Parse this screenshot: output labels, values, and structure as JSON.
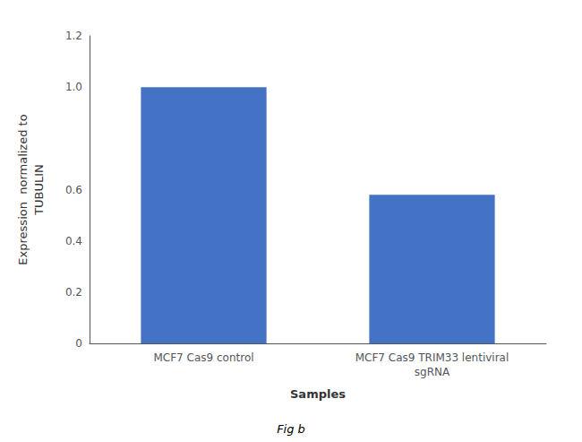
{
  "chart_data": {
    "type": "bar",
    "categories": [
      "MCF7 Cas9 control",
      "MCF7 Cas9 TRIM33 lentiviral\nsgRNA"
    ],
    "values": [
      1.0,
      0.58
    ],
    "color": "#4472C4",
    "xlabel": "Samples",
    "ylabel": "Expression  normalized to\nTUBULIN",
    "ylim": [
      0,
      1.2
    ],
    "yticks": [
      0,
      0.2,
      0.4,
      0.6,
      {
        "value": 1,
        "label": "1.0"
      },
      1.2
    ],
    "grid": false,
    "annotations": [
      "Fig b"
    ]
  }
}
